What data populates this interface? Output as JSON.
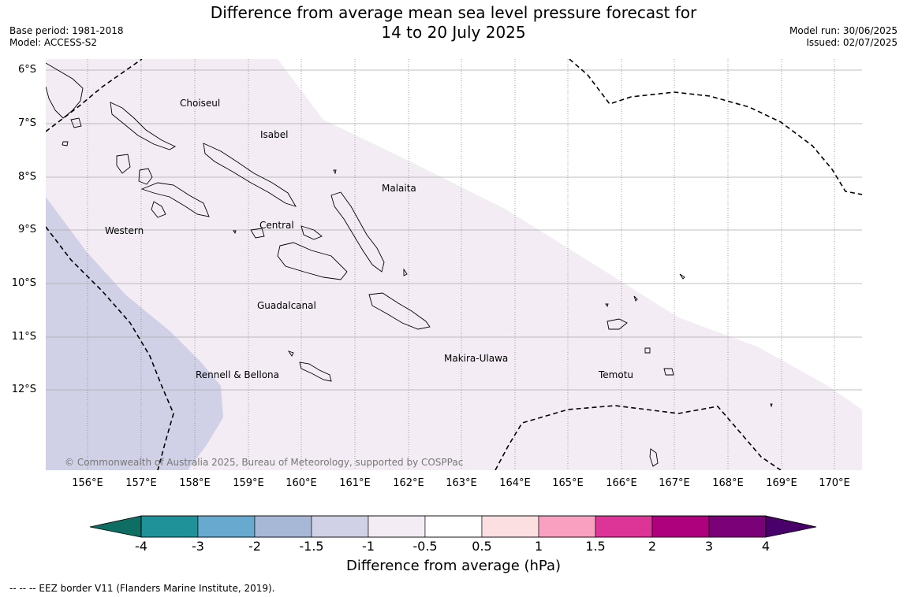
{
  "title": {
    "line1": "Difference from average mean sea level pressure forecast for",
    "line2": "14 to 20 July 2025"
  },
  "meta_left": {
    "base_period": "Base period: 1981-2018",
    "model": "Model: ACCESS-S2"
  },
  "meta_right": {
    "model_run": "Model run: 30/06/2025",
    "issued": "Issued: 02/07/2025"
  },
  "lat_labels": [
    "6°S",
    "7°S",
    "8°S",
    "9°S",
    "10°S",
    "11°S",
    "12°S"
  ],
  "lon_labels": [
    "156°E",
    "157°E",
    "158°E",
    "159°E",
    "160°E",
    "161°E",
    "162°E",
    "163°E",
    "164°E",
    "165°E",
    "166°E",
    "167°E",
    "168°E",
    "169°E",
    "170°E"
  ],
  "places": {
    "choiseul": "Choiseul",
    "isabel": "Isabel",
    "malaita": "Malaita",
    "western": "Western",
    "central": "Central",
    "guadalcanal": "Guadalcanal",
    "makira_ulawa": "Makira-Ulawa",
    "rennell_bellona": "Rennell & Bellona",
    "temotu": "Temotu"
  },
  "copyright": "© Commonwealth of Australia 2025, Bureau of Meteorology, supported by COSPPac",
  "colorbar": {
    "ticks": [
      "-4",
      "-3",
      "-2",
      "-1.5",
      "-1",
      "-0.5",
      "0.5",
      "1",
      "1.5",
      "2",
      "3",
      "4"
    ],
    "colors": [
      "#0f6e64",
      "#1f9199",
      "#67a9cf",
      "#a6b8d6",
      "#d0d1e6",
      "#f3ecf4",
      "#ffffff",
      "#fcdfe1",
      "#f99fbf",
      "#dd3497",
      "#ae017e",
      "#7a0177",
      "#49006a"
    ],
    "label": "Difference from average (hPa)"
  },
  "eez_note": "--  --  -- EEZ border V11 (Flanders Marine Institute, 2019)."
}
